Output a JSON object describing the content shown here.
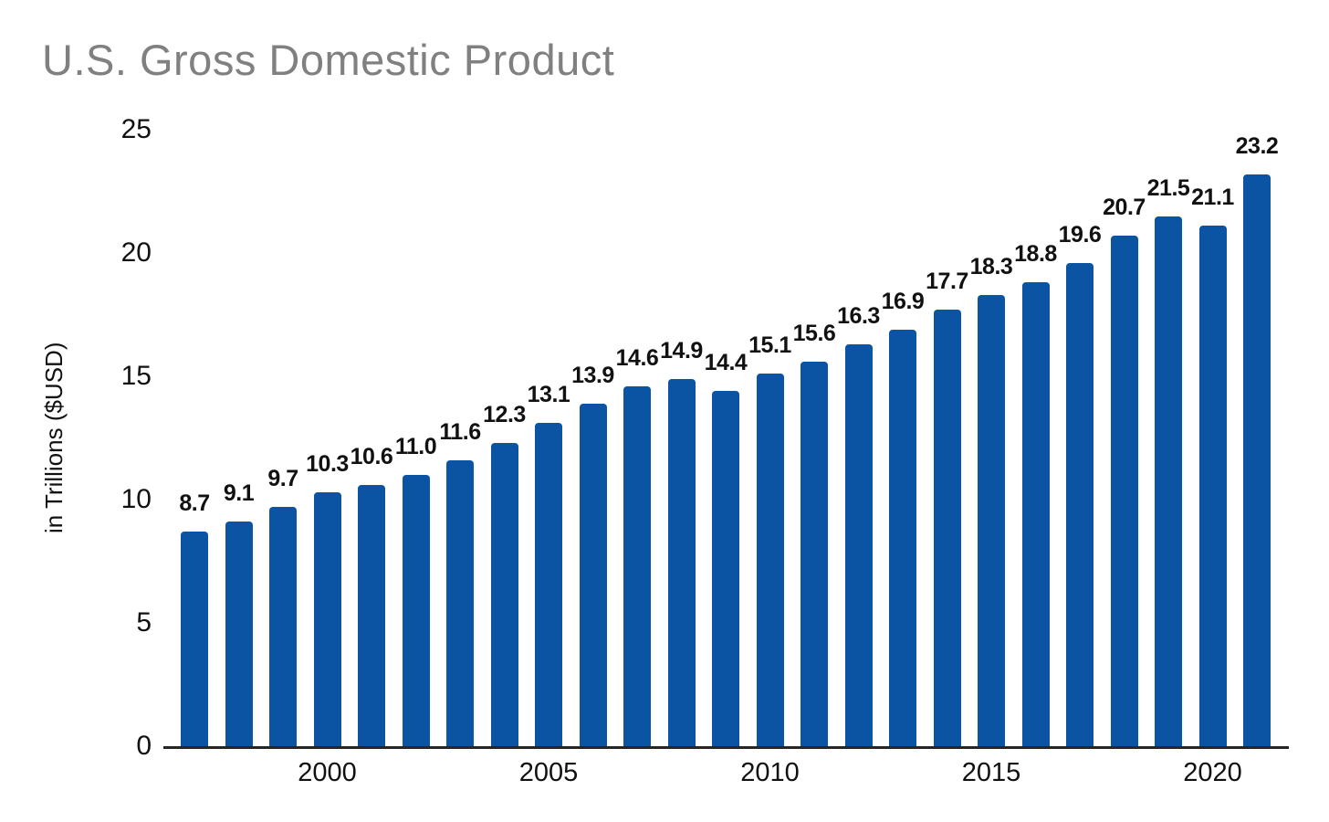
{
  "title": "U.S. Gross Domestic Product",
  "colors": {
    "bar": "#0b54a4",
    "title": "#808080",
    "axis_line": "#262626",
    "text": "#111111",
    "background": "#ffffff"
  },
  "chart_data": {
    "type": "bar",
    "title": "U.S. Gross Domestic Product",
    "ylabel": "in Trillions ($USD)",
    "xlabel": "",
    "x": [
      1997,
      1998,
      1999,
      2000,
      2001,
      2002,
      2003,
      2004,
      2005,
      2006,
      2007,
      2008,
      2009,
      2010,
      2011,
      2012,
      2013,
      2014,
      2015,
      2016,
      2017,
      2018,
      2019,
      2020,
      2021
    ],
    "values": [
      8.7,
      9.1,
      9.7,
      10.3,
      10.6,
      11.0,
      11.6,
      12.3,
      13.1,
      13.9,
      14.6,
      14.9,
      14.4,
      15.1,
      15.6,
      16.3,
      16.9,
      17.7,
      18.3,
      18.8,
      19.6,
      20.7,
      21.5,
      21.1,
      23.2
    ],
    "value_labels": [
      "8.7",
      "9.1",
      "9.7",
      "10.3",
      "10.6",
      "11.0",
      "11.6",
      "12.3",
      "13.1",
      "13.9",
      "14.6",
      "14.9",
      "14.4",
      "15.1",
      "15.6",
      "16.3",
      "16.9",
      "17.7",
      "18.3",
      "18.8",
      "19.6",
      "20.7",
      "21.5",
      "21.1",
      "23.2"
    ],
    "ylim": [
      0,
      25
    ],
    "yticks": [
      0,
      5,
      10,
      15,
      20,
      25
    ],
    "ytick_labels": [
      "0",
      "5",
      "10",
      "15",
      "20",
      "25"
    ],
    "xticks": [
      {
        "index": 3,
        "label": "2000"
      },
      {
        "index": 8,
        "label": "2005"
      },
      {
        "index": 13,
        "label": "2010"
      },
      {
        "index": 18,
        "label": "2015"
      },
      {
        "index": 23,
        "label": "2020"
      }
    ],
    "grid": false,
    "legend": null,
    "bar_data_labels_shown": true
  }
}
